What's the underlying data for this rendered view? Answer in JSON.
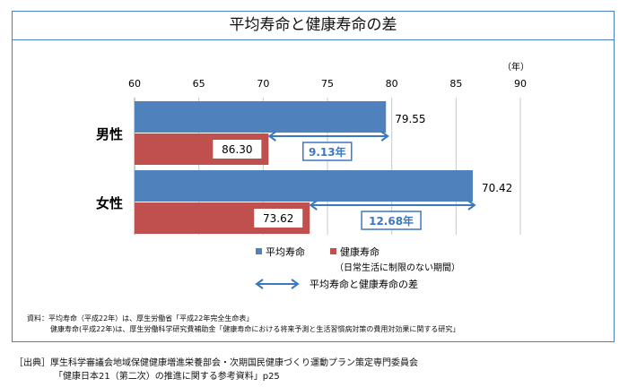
{
  "chart_data": {
    "type": "bar",
    "title": "平均寿命と健康寿命の差",
    "unit_label": "（年）",
    "categories": [
      "男性",
      "女性"
    ],
    "series": [
      {
        "name": "平均寿命",
        "values": [
          79.55,
          86.3
        ],
        "color": "#4f81bd"
      },
      {
        "name": "健康寿命",
        "sub_label": "（日常生活に制限のない期間）",
        "values": [
          70.42,
          73.62
        ],
        "color": "#c0504d"
      }
    ],
    "value_labels": [
      "79.55",
      "86.30",
      "70.42",
      "73.62"
    ],
    "differences": [
      {
        "category": "男性",
        "label": "9.13年",
        "value": 9.13
      },
      {
        "category": "女性",
        "label": "12.68年",
        "value": 12.68
      }
    ],
    "difference_legend": "平均寿命と健康寿命の差",
    "xlim": [
      60,
      90
    ],
    "xticks": [
      "60",
      "65",
      "70",
      "75",
      "80",
      "85",
      "90"
    ],
    "grid": true,
    "legend": "bottom",
    "arrow_color": "#3c78c0"
  },
  "notes": {
    "line1": "資料：平均寿命（平成22年）は、厚生労働省「平成22年完全生命表」",
    "line2": "健康寿命(平成22年)は、厚生労働科学研究費補助金「健康寿命における将来予測と生活習慣病対策の費用対効果に関する研究」"
  },
  "citation": {
    "line1": "［出典］厚生科学審議会地域保健健康増進栄養部会・次期国民健康づくり運動プラン策定専門委員会",
    "line2": "「健康日本21（第二次）の推進に関する参考資料」p25"
  }
}
